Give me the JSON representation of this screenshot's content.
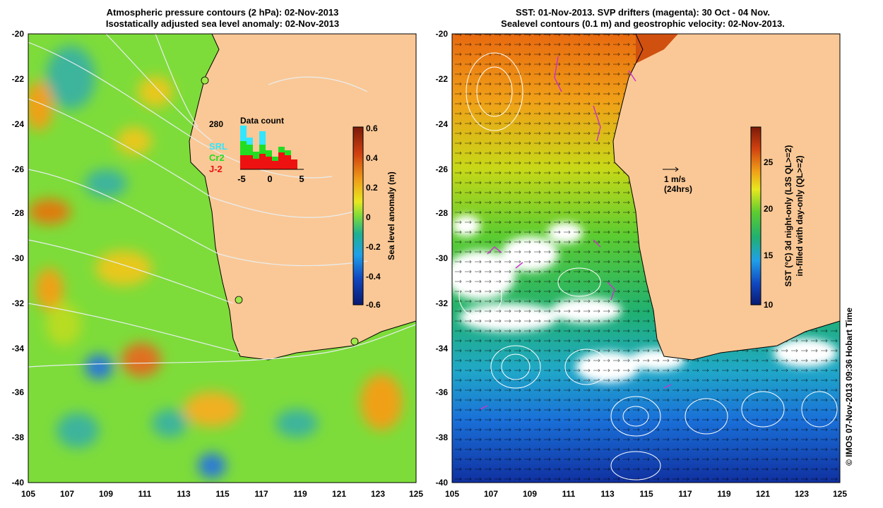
{
  "left_panel": {
    "title_line1": "Atmospheric pressure contours (2 hPa): 02-Nov-2013",
    "title_line2": "Isostatically adjusted sea level anomaly: 02-Nov-2013",
    "x_ticks": [
      "105",
      "107",
      "109",
      "111",
      "113",
      "115",
      "117",
      "119",
      "121",
      "123",
      "125"
    ],
    "y_ticks": [
      "-20",
      "-22",
      "-24",
      "-26",
      "-28",
      "-30",
      "-32",
      "-34",
      "-36",
      "-38",
      "-40"
    ],
    "colorbar": {
      "label": "Sea level anomaly (m)",
      "ticks": [
        "0.6",
        "0.4",
        "0.2",
        "0",
        "-0.2",
        "-0.4",
        "-0.6"
      ]
    },
    "inset": {
      "title": "Data count",
      "max_label": "280",
      "legend": [
        {
          "name": "SRL",
          "color": "#33e6ff"
        },
        {
          "name": "Cr2",
          "color": "#22dd22"
        },
        {
          "name": "J-2",
          "color": "#ee1111"
        }
      ],
      "x_tick_left": "-5",
      "x_tick_mid": "0",
      "x_tick_right": "5"
    }
  },
  "right_panel": {
    "title_line1": "SST: 01-Nov-2013. SVP drifters (magenta): 30 Oct - 04 Nov.",
    "title_line2": "Sealevel contours (0.1 m) and geostrophic velocity: 02-Nov-2013.",
    "x_ticks": [
      "105",
      "107",
      "109",
      "111",
      "113",
      "115",
      "117",
      "119",
      "121",
      "123",
      "125"
    ],
    "y_ticks": [
      "-20",
      "-22",
      "-24",
      "-26",
      "-28",
      "-30",
      "-32",
      "-34",
      "-36",
      "-38",
      "-40"
    ],
    "scale_label": "1 m/s",
    "scale_sublabel": "(24hrs)",
    "colorbar": {
      "label_line1": "SST (°C) 3d night-only (L3S QL>=2)",
      "label_line2": "in-filled with day-only (QL>=2)",
      "ticks": [
        "25",
        "20",
        "15",
        "10"
      ]
    }
  },
  "credit": "© IMOS 07-Nov-2013 09:36 Hobart Time",
  "colors": {
    "land": "#fac896",
    "white_cloud": "#ffffff"
  }
}
